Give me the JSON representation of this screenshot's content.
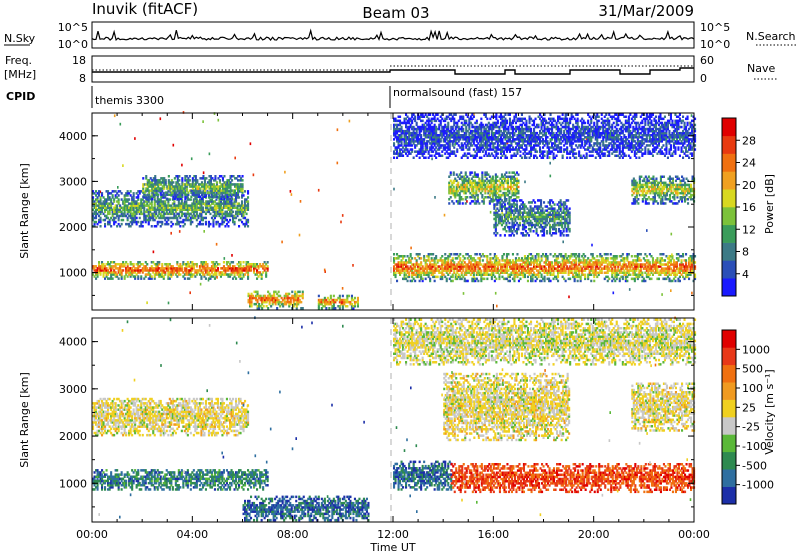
{
  "header": {
    "left_title": "Inuvik (fitACF)",
    "center_title": "Beam 03",
    "date": "31/Mar/2009"
  },
  "nsky": {
    "label": "N.Sky",
    "tick_top": "10^5",
    "tick_bottom": "10^0",
    "right_label": "N.Search",
    "right_tick_top": "10^5",
    "right_tick_bottom": "10^0"
  },
  "freq": {
    "label_line1": "Freq.",
    "label_line2": "[MHz]",
    "tick_top": "18",
    "tick_bottom": "8",
    "right_label": "Nave",
    "right_tick_top": "60",
    "right_tick_bottom": "0"
  },
  "cpid": {
    "label": "CPID",
    "modes": [
      {
        "name": "themis 3300",
        "start_hour": 0
      },
      {
        "name": "normalsound (fast) 157",
        "start_hour": 12
      }
    ]
  },
  "chart_data": [
    {
      "type": "heatmap",
      "panel": "power",
      "ylabel": "Slant Range [km]",
      "ylim": [
        180,
        4500
      ],
      "y_ticks": [
        "1000",
        "2000",
        "3000",
        "4000"
      ],
      "xlim_hours": [
        0,
        24
      ],
      "colorbar": {
        "label": "Power [dB]",
        "tick_labels": [
          "4",
          "8",
          "12",
          "16",
          "20",
          "24",
          "28"
        ],
        "colors": [
          "#1a1aff",
          "#2b4fb8",
          "#3c7a86",
          "#3a9c5a",
          "#7cc23a",
          "#d8d820",
          "#f0a020",
          "#f07010",
          "#e83a10",
          "#e00000"
        ]
      },
      "echo_regions": [
        {
          "t0": 0,
          "t1": 7.0,
          "r0": 850,
          "r1": 1250,
          "level": 0.85
        },
        {
          "t0": 6.2,
          "t1": 8.4,
          "r0": 200,
          "r1": 600,
          "level": 0.8
        },
        {
          "t0": 0,
          "t1": 6.2,
          "r0": 2000,
          "r1": 2800,
          "level": 0.4
        },
        {
          "t0": 2.0,
          "t1": 6.0,
          "r0": 2600,
          "r1": 3100,
          "level": 0.45
        },
        {
          "t0": 9.0,
          "t1": 10.6,
          "r0": 200,
          "r1": 500,
          "level": 0.75
        },
        {
          "t0": 12.0,
          "t1": 24.0,
          "r0": 800,
          "r1": 1400,
          "level": 0.8
        },
        {
          "t0": 14.2,
          "t1": 17.0,
          "r0": 2500,
          "r1": 3200,
          "level": 0.55
        },
        {
          "t0": 16.0,
          "t1": 19.0,
          "r0": 1800,
          "r1": 2600,
          "level": 0.35
        },
        {
          "t0": 21.5,
          "t1": 24.0,
          "r0": 2500,
          "r1": 3100,
          "level": 0.55
        },
        {
          "t0": 12.0,
          "t1": 24.0,
          "r0": 3500,
          "r1": 4450,
          "level": 0.15
        }
      ]
    },
    {
      "type": "heatmap",
      "panel": "velocity",
      "ylabel": "Slant Range [km]",
      "ylim": [
        180,
        4500
      ],
      "y_ticks": [
        "1000",
        "2000",
        "3000",
        "4000"
      ],
      "x_ticks": [
        "00:00",
        "04:00",
        "08:00",
        "12:00",
        "16:00",
        "20:00",
        "00:00"
      ],
      "xlabel": "Time UT",
      "colorbar": {
        "label": "Velocity [m s⁻¹]",
        "tick_labels": [
          "1000",
          "500",
          "100",
          "25",
          "-25",
          "-100",
          "-500",
          "-1000"
        ],
        "colors": [
          "#1c2fa8",
          "#2f6fa0",
          "#2e8a50",
          "#5ab838",
          "#c8c8c8",
          "#f0d020",
          "#f09a20",
          "#f07010",
          "#e83818",
          "#e00000"
        ]
      },
      "echo_regions": [
        {
          "t0": 0,
          "t1": 7.0,
          "r0": 850,
          "r1": 1300,
          "v": 0.6
        },
        {
          "t0": 0,
          "t1": 6.2,
          "r0": 2000,
          "r1": 2800,
          "v": 0.0
        },
        {
          "t0": 6.0,
          "t1": 11.0,
          "r0": 200,
          "r1": 700,
          "v": 0.7
        },
        {
          "t0": 12.0,
          "t1": 14.3,
          "r0": 850,
          "r1": 1450,
          "v": 0.7
        },
        {
          "t0": 14.3,
          "t1": 24.0,
          "r0": 800,
          "r1": 1400,
          "v": -0.65
        },
        {
          "t0": 14.0,
          "t1": 19.0,
          "r0": 1900,
          "r1": 3300,
          "v": 0.0
        },
        {
          "t0": 21.5,
          "t1": 24.0,
          "r0": 2100,
          "r1": 3100,
          "v": 0.0
        },
        {
          "t0": 12.0,
          "t1": 24.0,
          "r0": 3500,
          "r1": 4450,
          "v": 0.05
        }
      ]
    }
  ]
}
